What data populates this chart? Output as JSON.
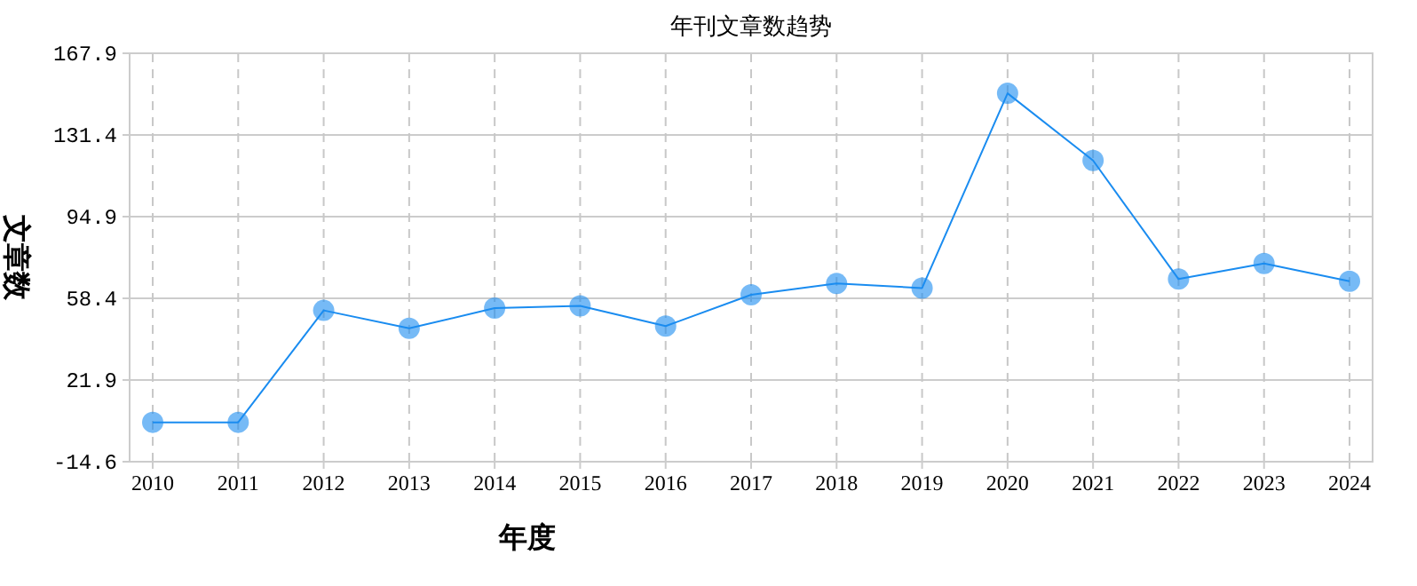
{
  "chart_data": {
    "type": "line",
    "title": "年刊文章数趋势",
    "xlabel": "年度",
    "ylabel": "文章数",
    "categories": [
      "2010",
      "2011",
      "2012",
      "2013",
      "2014",
      "2015",
      "2016",
      "2017",
      "2018",
      "2019",
      "2020",
      "2021",
      "2022",
      "2023",
      "2024"
    ],
    "series": [
      {
        "color": "#1a8cf0",
        "values": [
          3,
          3,
          53,
          45,
          54,
          55,
          46,
          60,
          65,
          63,
          150,
          120,
          67,
          74,
          66
        ]
      }
    ],
    "ylim": [
      -14.6,
      167.9
    ],
    "yticks": [
      -14.6,
      21.9,
      58.4,
      94.9,
      131.4,
      167.9
    ],
    "grid": true,
    "marker": "circle",
    "line_style": "solid"
  }
}
